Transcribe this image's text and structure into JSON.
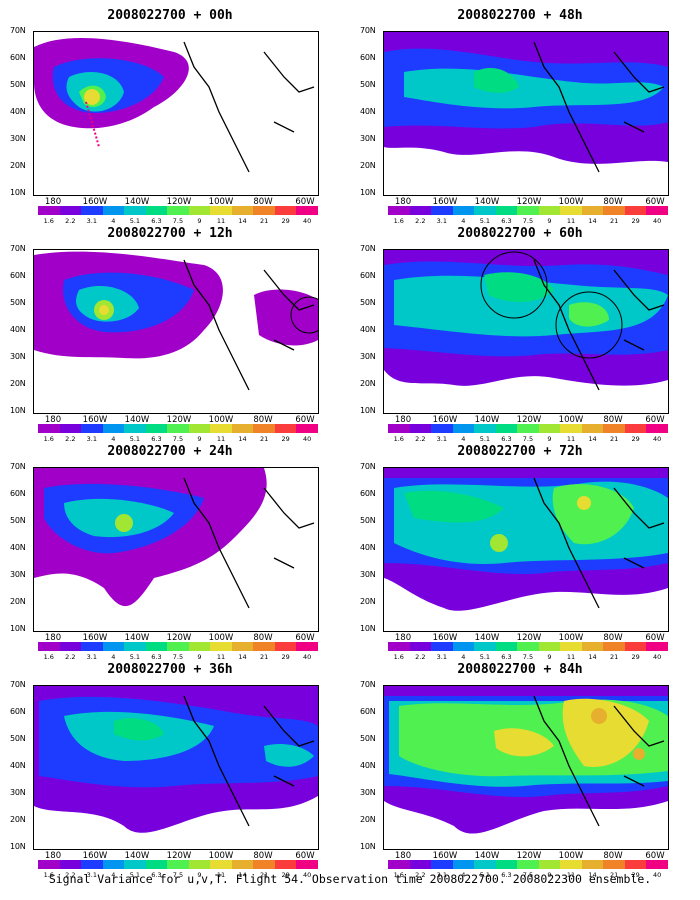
{
  "panels": [
    {
      "title": "2008022700 + 00h"
    },
    {
      "title": "2008022700 + 48h"
    },
    {
      "title": "2008022700 + 12h"
    },
    {
      "title": "2008022700 + 60h"
    },
    {
      "title": "2008022700 + 24h"
    },
    {
      "title": "2008022700 + 72h"
    },
    {
      "title": "2008022700 + 36h"
    },
    {
      "title": "2008022700 + 84h"
    }
  ],
  "map": {
    "y_ticks": [
      "70N",
      "60N",
      "50N",
      "40N",
      "30N",
      "20N",
      "10N"
    ],
    "x_ticks": [
      "180",
      "160W",
      "140W",
      "120W",
      "100W",
      "80W",
      "60W"
    ]
  },
  "colorbar": {
    "labels": [
      "1.6",
      "2.2",
      "3.1",
      "4",
      "5.1",
      "6.3",
      "7.5",
      "9",
      "11",
      "14",
      "21",
      "29",
      "40"
    ],
    "colors": [
      "#a000c8",
      "#7800dc",
      "#1e3cff",
      "#0096f0",
      "#00c8c8",
      "#00dc82",
      "#50f050",
      "#a0e632",
      "#e6dc32",
      "#e6af2d",
      "#f08228",
      "#fa3c3c",
      "#f00082"
    ]
  },
  "caption": "Signal Variance for u,v,T. Flight 54. Observation time 2008022700. 2008022300 ensemble."
}
